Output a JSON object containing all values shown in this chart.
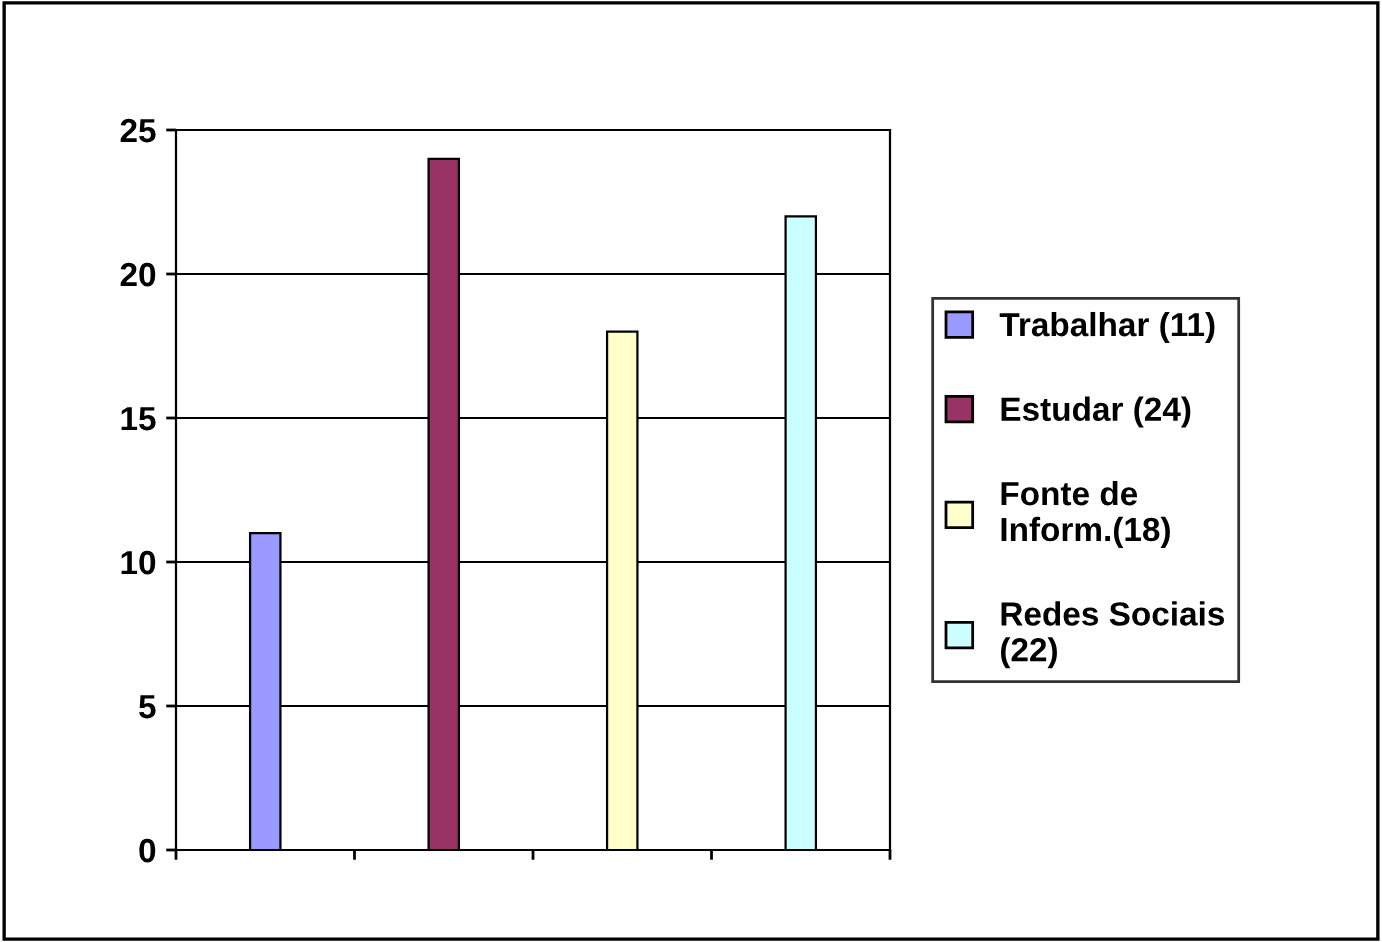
{
  "chart_data": {
    "type": "bar",
    "categories": [
      null,
      null,
      null,
      null
    ],
    "series": [
      {
        "name": "Trabalhar (11)",
        "color": "#9999ff",
        "values": [
          11,
          null,
          null,
          null
        ]
      },
      {
        "name": "Estudar (24)",
        "color": "#993366",
        "values": [
          null,
          24,
          null,
          null
        ]
      },
      {
        "name": "Fonte de\nInform.(18)",
        "color": "#ffffcc",
        "values": [
          null,
          null,
          18,
          null
        ]
      },
      {
        "name": "Redes Sociais\n(22)",
        "color": "#ccffff",
        "values": [
          null,
          null,
          null,
          22
        ]
      }
    ],
    "ylim": [
      0,
      25
    ],
    "yticks": [
      0,
      5,
      10,
      15,
      20,
      25
    ],
    "grid": "y",
    "legend": "right",
    "tick_labels": "y"
  }
}
